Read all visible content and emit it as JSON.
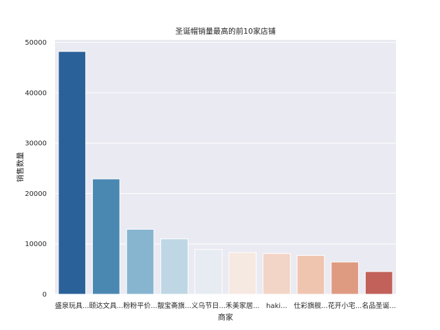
{
  "chart_data": {
    "type": "bar",
    "title": "圣诞帽销量最高的前10家店铺",
    "xlabel": "商家",
    "ylabel": "销售数量",
    "ylim": [
      0,
      50500
    ],
    "yticks": [
      0,
      10000,
      20000,
      30000,
      40000,
      50000
    ],
    "categories": [
      "盛泉玩具...",
      "颐达文具...",
      "粉粉平价...",
      "靓宝斋旗...",
      "义乌节日...",
      "禾美家居...",
      "haki...",
      "仕彩旗舰...",
      "花开小宅...",
      "名品圣诞..."
    ],
    "values": [
      48200,
      22900,
      12900,
      11000,
      8900,
      8300,
      8100,
      7700,
      6400,
      4500
    ],
    "colors": [
      "#2b6199",
      "#4a88b2",
      "#87b5d0",
      "#bfd7e5",
      "#e6ecf1",
      "#f6e9e2",
      "#f2d5c6",
      "#efc5b0",
      "#df9b82",
      "#c1615a",
      "#a0303b"
    ],
    "grid": true,
    "legend": "none",
    "background": "#eaeaf2"
  }
}
